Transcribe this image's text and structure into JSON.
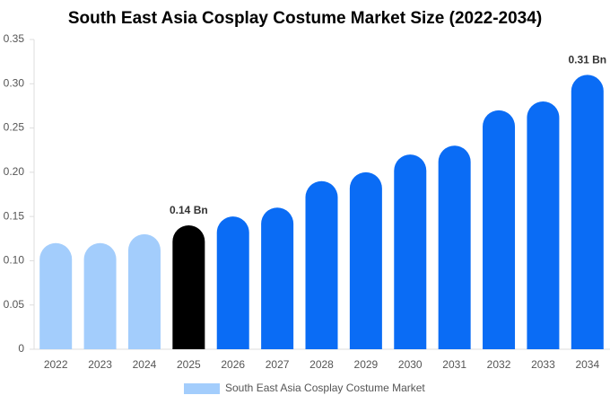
{
  "chart_data": {
    "type": "bar",
    "title": "South East Asia Cosplay Costume Market Size (2022-2034)",
    "categories": [
      "2022",
      "2023",
      "2024",
      "2025",
      "2026",
      "2027",
      "2028",
      "2029",
      "2030",
      "2031",
      "2032",
      "2033",
      "2034"
    ],
    "series": [
      {
        "name": "South East Asia Cosplay Costume Market",
        "color": "#a3cdfc",
        "values": [
          0.12,
          0.12,
          0.13,
          0.14,
          0.15,
          0.16,
          0.19,
          0.2,
          0.22,
          0.23,
          0.27,
          0.28,
          0.31
        ],
        "value_labels": [
          null,
          null,
          null,
          "0.14 Bn",
          null,
          null,
          null,
          null,
          null,
          null,
          null,
          null,
          "0.31 Bn"
        ],
        "colors": [
          "#a3cdfc",
          "#a3cdfc",
          "#a3cdfc",
          "#000000",
          "#0a6cf5",
          "#0a6cf5",
          "#0a6cf5",
          "#0a6cf5",
          "#0a6cf5",
          "#0a6cf5",
          "#0a6cf5",
          "#0a6cf5",
          "#0a6cf5"
        ]
      }
    ],
    "ylim": [
      0,
      0.35
    ],
    "yticks": [
      0,
      0.05,
      {
        "value": 0.1,
        "label": "0.10"
      },
      0.15,
      {
        "value": 0.2,
        "label": "0.20"
      },
      0.25,
      {
        "value": 0.3,
        "label": "0.30"
      },
      0.35
    ],
    "grid": false
  }
}
